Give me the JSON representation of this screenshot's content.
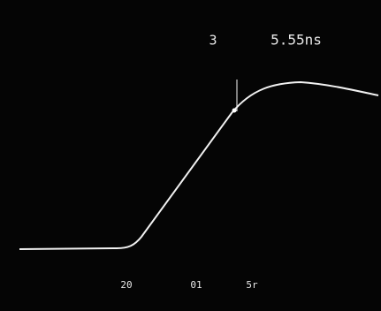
{
  "readout": {
    "marker": "3",
    "value": "5.55ns"
  },
  "scale": {
    "labels": [
      "20",
      "01",
      "5r"
    ]
  }
}
